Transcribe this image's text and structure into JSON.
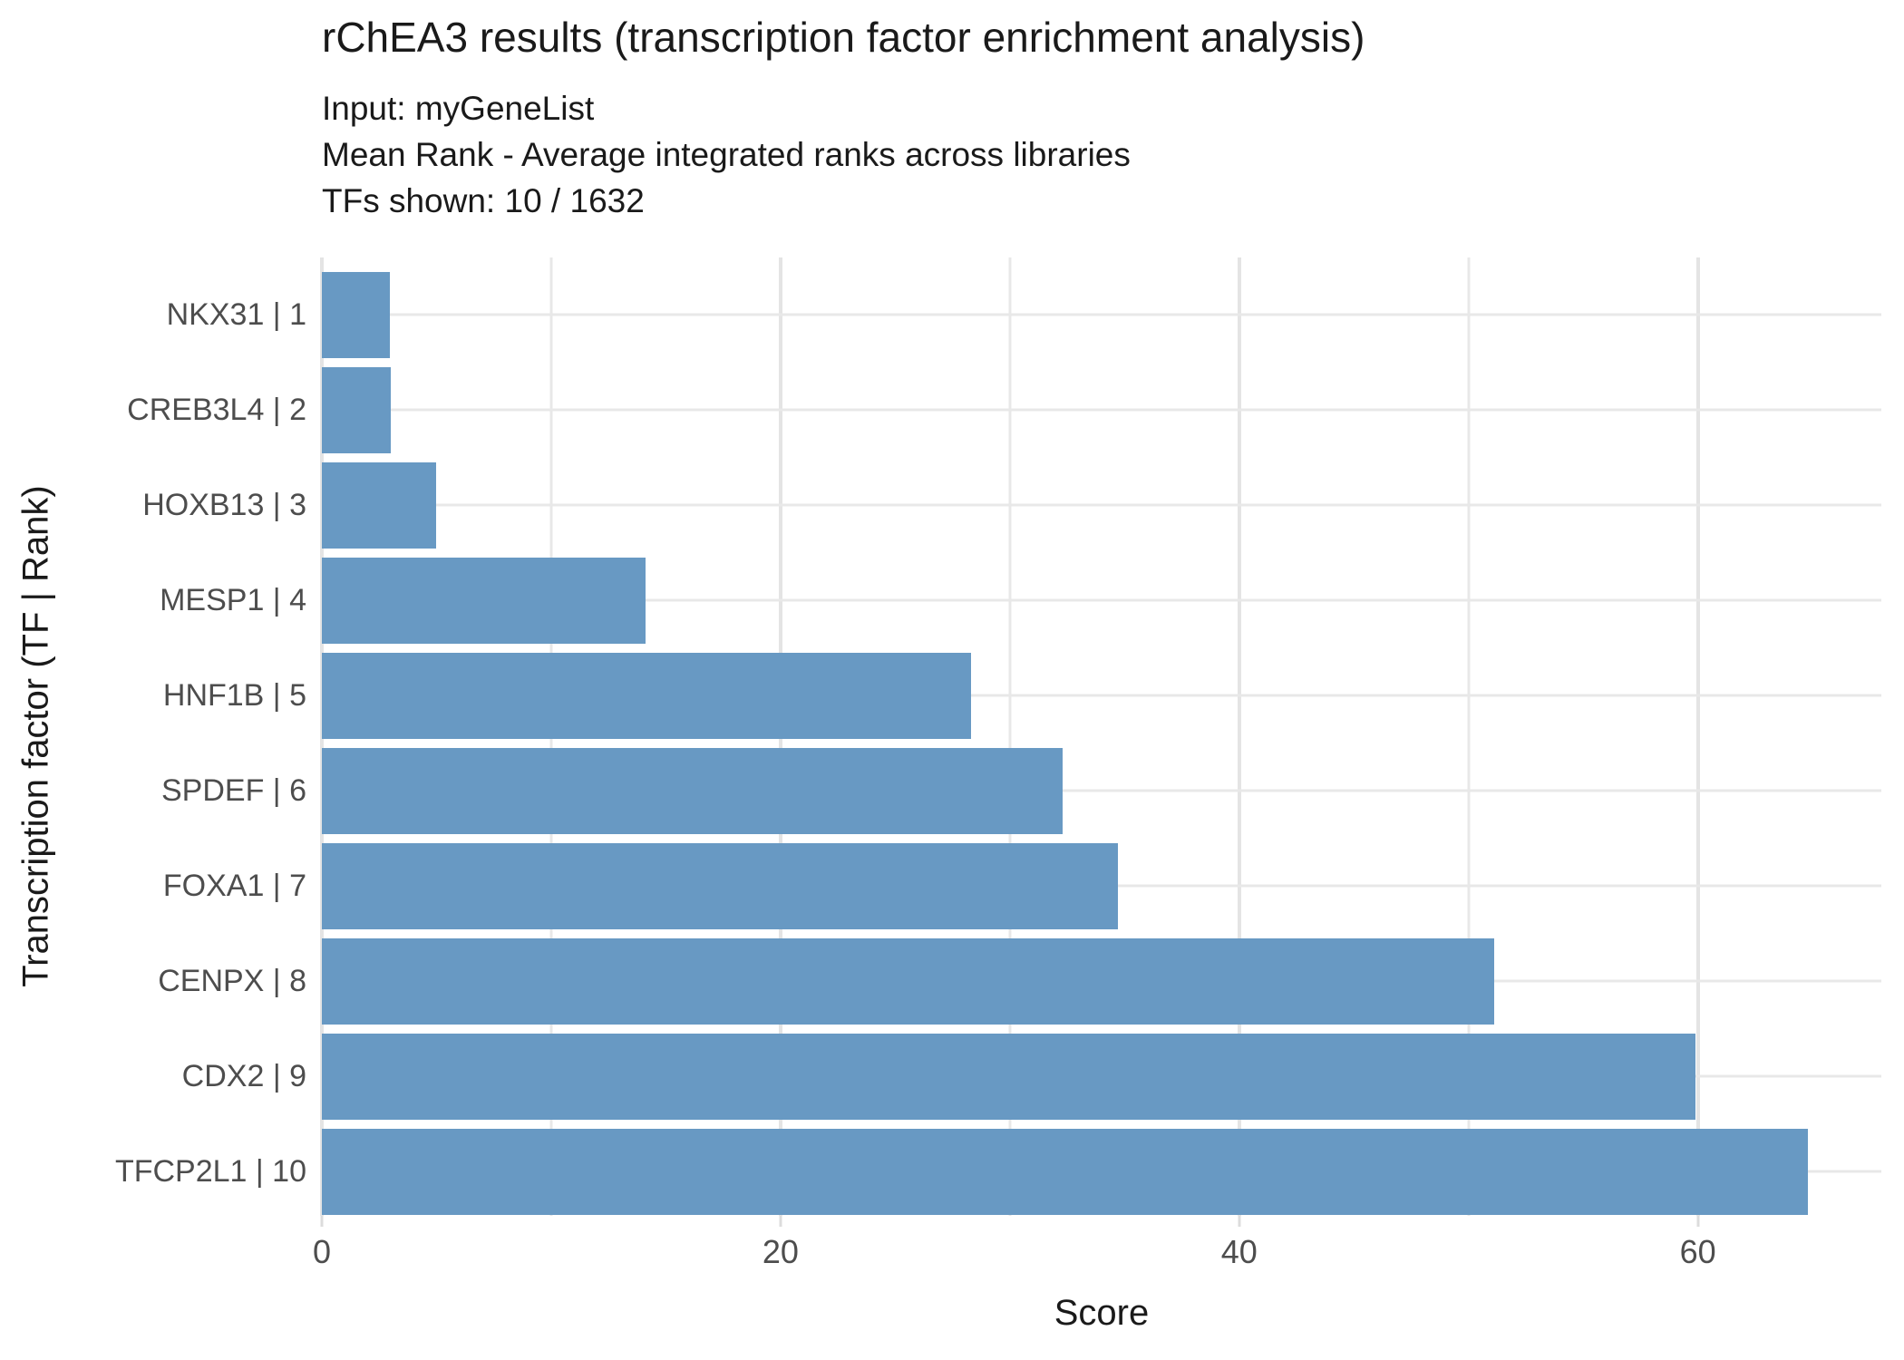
{
  "title": "rChEA3 results (transcription factor enrichment analysis)",
  "subtitle_lines": [
    "Input: myGeneList",
    "Mean Rank - Average integrated ranks across libraries",
    "TFs shown: 10 / 1632"
  ],
  "chart_data": {
    "type": "bar",
    "orientation": "horizontal",
    "title": "rChEA3 results (transcription factor enrichment analysis)",
    "subtitle_lines": [
      "Input: myGeneList",
      "Mean Rank - Average integrated ranks across libraries",
      "TFs shown: 10 / 1632"
    ],
    "categories": [
      "NKX31 | 1",
      "CREB3L4 | 2",
      "HOXB13 | 3",
      "MESP1 | 4",
      "HNF1B | 5",
      "SPDEF | 6",
      "FOXA1 | 7",
      "CENPX | 8",
      "CDX2 | 9",
      "TFCP2L1 | 10"
    ],
    "values": [
      2.95,
      3.0,
      5.0,
      14.1,
      28.3,
      32.3,
      34.7,
      51.1,
      59.9,
      64.8
    ],
    "xlabel": "Score",
    "ylabel": "Transcription factor (TF | Rank)",
    "xlim": [
      0,
      68
    ],
    "x_ticks": [
      0,
      20,
      40,
      60
    ],
    "x_minor_gridlines": [
      10,
      30,
      50
    ],
    "grid": true,
    "legend": false,
    "bar_color": "#6899C3",
    "grid_color": "#E8E8E8",
    "tick_label_color": "#4D4D4D"
  }
}
